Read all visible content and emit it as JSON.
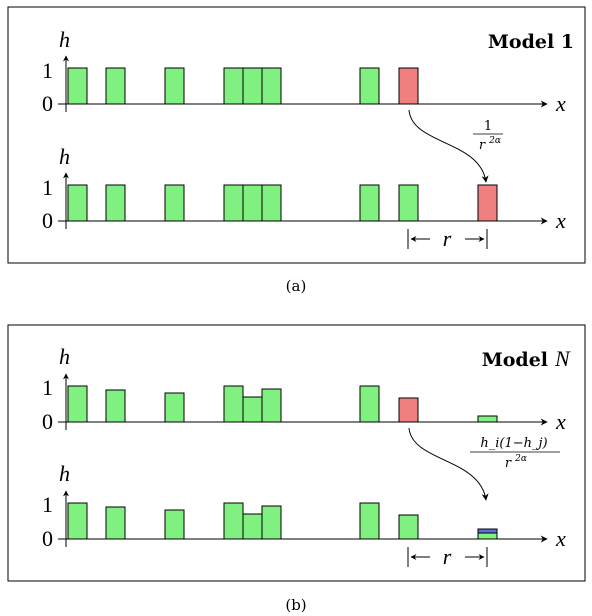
{
  "colors": {
    "green": "#80f080",
    "red": "#f08080",
    "blue": "#5b6fd8"
  },
  "panel_a": {
    "title": "Model 1",
    "caption": "(a)",
    "axis_h": "h",
    "axis_x": "x",
    "tick_one": "1",
    "tick_zero": "0",
    "rate_num": "1",
    "rate_den": "r",
    "rate_exp": "2α",
    "distance": "r",
    "top_bars": [
      1,
      1,
      1,
      1,
      1,
      1,
      1,
      1
    ],
    "bottom_bars": [
      1,
      1,
      1,
      1,
      1,
      1,
      1,
      1
    ]
  },
  "panel_b": {
    "title_prefix": "Model",
    "title_var": "N",
    "caption": "(b)",
    "axis_h": "h",
    "axis_x": "x",
    "tick_one": "1",
    "tick_zero": "0",
    "rate_num": "h_i(1−h_j)",
    "rate_den": "r",
    "rate_exp": "2α",
    "distance": "r",
    "top_heights": [
      1.0,
      0.9,
      0.83,
      1.0,
      0.75,
      0.93,
      1.0,
      0.72,
      0.2
    ],
    "bottom_heights": [
      1.0,
      0.9,
      0.83,
      1.0,
      0.75,
      0.93,
      1.0,
      0.72,
      0.28
    ]
  }
}
